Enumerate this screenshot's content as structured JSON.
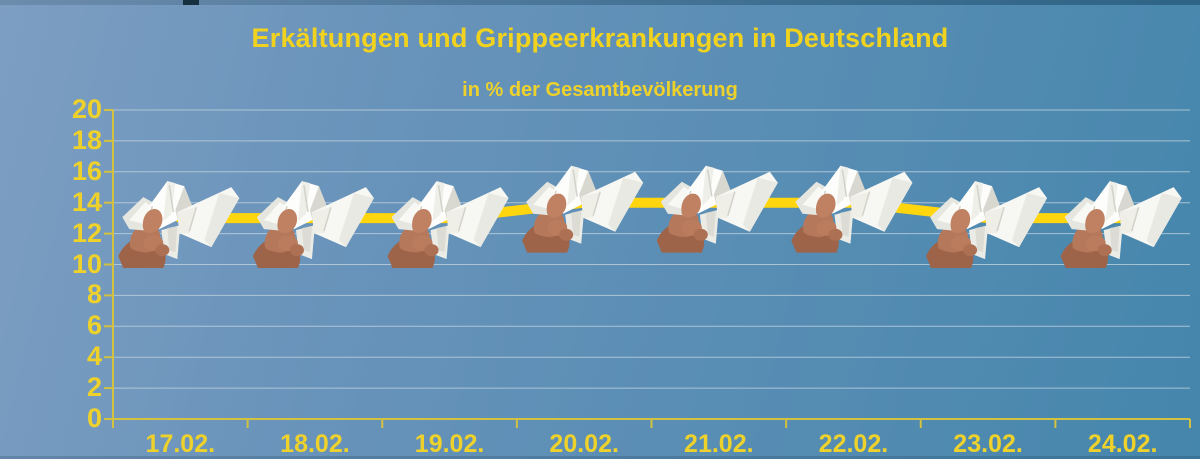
{
  "chart_data": {
    "type": "line",
    "title": "Erkältungen und Grippeerkrankungen in Deutschland",
    "subtitle": "in % der Gesamtbevölkerung",
    "categories": [
      "17.02.",
      "18.02.",
      "19.02.",
      "20.02.",
      "21.02.",
      "22.02.",
      "23.02.",
      "24.02."
    ],
    "series": [
      {
        "values": [
          13,
          13,
          13,
          14,
          14,
          14,
          13,
          13
        ],
        "marker": "crumpled-tissue-in-hand-photo"
      }
    ],
    "ylim": [
      0,
      20
    ],
    "yticks": [
      0,
      2,
      4,
      6,
      8,
      10,
      12,
      14,
      16,
      18,
      20
    ],
    "grid": true,
    "legend_position": "none",
    "colors": {
      "background_gradient": [
        "#7d9ec2",
        "#4586ac"
      ],
      "line": "#ffd60e",
      "title_text": "#f1d31f",
      "label_text": "#eed22b",
      "axis": "#d2c240",
      "gridline": "#c7d6e0"
    }
  }
}
